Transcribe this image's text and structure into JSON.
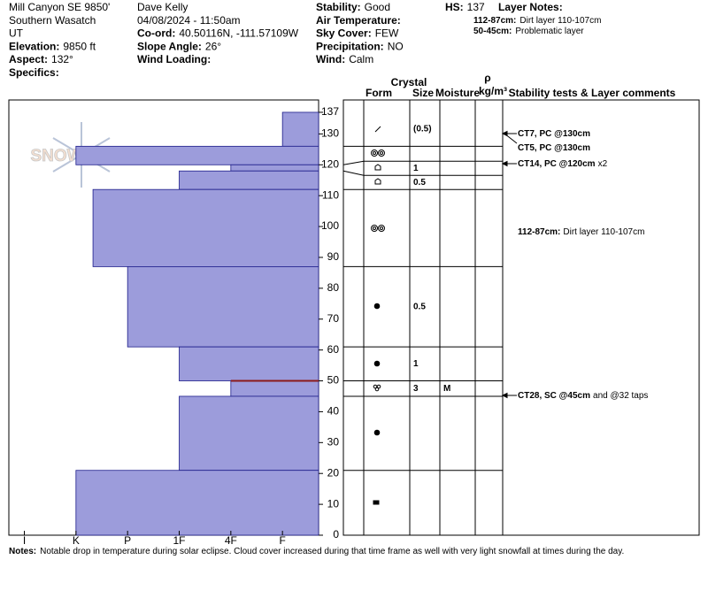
{
  "header": {
    "columns": [
      [
        {
          "value": "Mill Canyon SE 9850'"
        },
        {
          "value": "Southern Wasatch"
        },
        {
          "value": "UT"
        },
        {
          "label": "Elevation:",
          "value": "9850 ft"
        },
        {
          "label": "Aspect:",
          "value": "132°"
        },
        {
          "label": "Specifics:"
        }
      ],
      [
        {
          "value": "Dave Kelly"
        },
        {
          "value": "04/08/2024 - 11:50am"
        },
        {
          "label": "Co-ord:",
          "value": "40.50116N, -111.57109W"
        },
        {
          "label": "Slope Angle:",
          "value": "26°"
        },
        {
          "label": "Wind Loading:"
        }
      ],
      [
        {
          "label": "Stability:",
          "value": "Good"
        },
        {
          "label": "Air Temperature:"
        },
        {
          "label": "Sky Cover:",
          "value": "FEW"
        },
        {
          "label": "Precipitation:",
          "value": "NO"
        },
        {
          "label": "Wind:",
          "value": "Calm"
        }
      ]
    ],
    "hs": {
      "label": "HS:",
      "value": "137"
    },
    "layer_notes_title": "Layer Notes:",
    "layer_notes": [
      {
        "label": "112-87cm:",
        "value": "Dirt layer 110-107cm"
      },
      {
        "label": "50-45cm:",
        "value": "Problematic layer"
      }
    ]
  },
  "columns": {
    "crystal": "Crystal",
    "form": "Form",
    "size": "Size",
    "moisture": "Moisture",
    "rho": "ρ",
    "density_unit": "kg/m³",
    "comments": "Stability tests & Layer comments"
  },
  "watermark": "SNOWPILOT",
  "profile": {
    "depth_lim": [
      0,
      141
    ],
    "depth_ticks": [
      137,
      130,
      120,
      110,
      100,
      90,
      80,
      70,
      60,
      50,
      40,
      30,
      20,
      10,
      0
    ],
    "hardness_lim": [
      0.3,
      6.3
    ],
    "hardness_ticks": [
      {
        "value": 6,
        "label": "I"
      },
      {
        "value": 5,
        "label": "K"
      },
      {
        "value": 4,
        "label": "P"
      },
      {
        "value": 3,
        "label": "1F"
      },
      {
        "value": 2,
        "label": "4F"
      },
      {
        "value": 1,
        "label": "F"
      }
    ],
    "bar_color": "#9c9cdb",
    "bar_edge": "#1c1c8a",
    "layers": [
      {
        "top": 137,
        "bottom": 126,
        "hardness": 1,
        "size": "(0.5)"
      },
      {
        "top": 126,
        "bottom": 120,
        "hardness": 5
      },
      {
        "top": 120,
        "bottom": 118,
        "hardness": 2,
        "size": "1"
      },
      {
        "top": 118,
        "bottom": 112,
        "hardness": 3,
        "size": "0.5"
      },
      {
        "top": 112,
        "bottom": 87,
        "hardness": 4.67
      },
      {
        "top": 87,
        "bottom": 61,
        "hardness": 4,
        "size": "0.5"
      },
      {
        "top": 61,
        "bottom": 50,
        "hardness": 3,
        "size": "1"
      },
      {
        "top": 50,
        "bottom": 45,
        "hardness": 2,
        "size": "3",
        "moisture": "M",
        "top_line_color": "#8b1a1a"
      },
      {
        "top": 45,
        "bottom": 21,
        "hardness": 3
      },
      {
        "top": 21,
        "bottom": 0,
        "hardness": 5
      }
    ]
  },
  "comments": [
    {
      "bold": "CT7, PC @130cm"
    },
    {
      "bold": "CT5, PC @130cm"
    },
    {
      "bold": "CT14, PC @120cm",
      "text": "x2"
    },
    {
      "bold": "112-87cm:",
      "text": "Dirt layer 110-107cm"
    },
    {
      "bold": "CT28, SC @45cm",
      "text": "and @32 taps"
    }
  ],
  "footer": {
    "label": "Notes:",
    "value": "Notable drop in temperature during solar eclipse. Cloud cover increased during that time frame as well with very light snowfall at times during the day."
  }
}
